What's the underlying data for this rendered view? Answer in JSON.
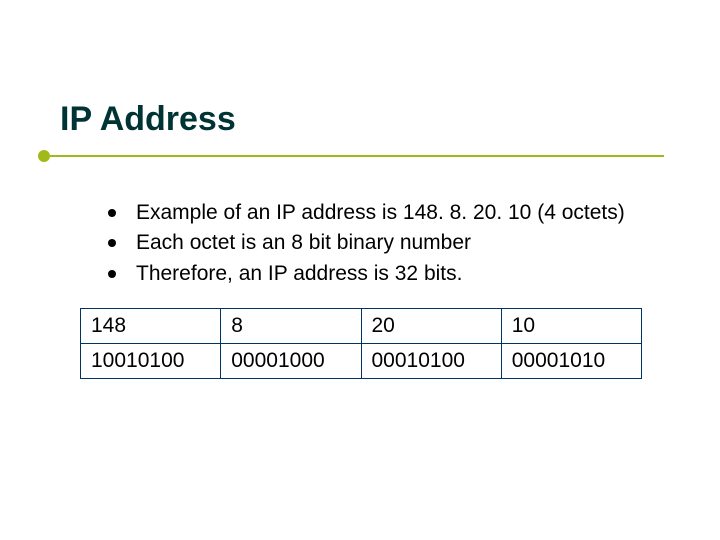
{
  "title": "IP Address",
  "title_color": "#003333",
  "underline": {
    "dot_color": "#a2b91a",
    "line_color": "#a2b91a"
  },
  "bullets": [
    "Example of an IP address is 148. 8. 20. 10 (4 octets)",
    "Each octet is an 8 bit binary number",
    "Therefore, an IP address is 32 bits."
  ],
  "bullet_marker_color": "#000000",
  "bullet_text_color": "#000000",
  "bullet_fontsize": 21,
  "table": {
    "border_color": "#003366",
    "cell_fontsize": 21,
    "cell_text_color": "#000000",
    "columns": 4,
    "rows": [
      [
        "148",
        "8",
        "20",
        "10"
      ],
      [
        "10010100",
        "00001000",
        "00010100",
        "00001010"
      ]
    ]
  },
  "background_color": "#ffffff",
  "slide_width": 720,
  "slide_height": 540
}
